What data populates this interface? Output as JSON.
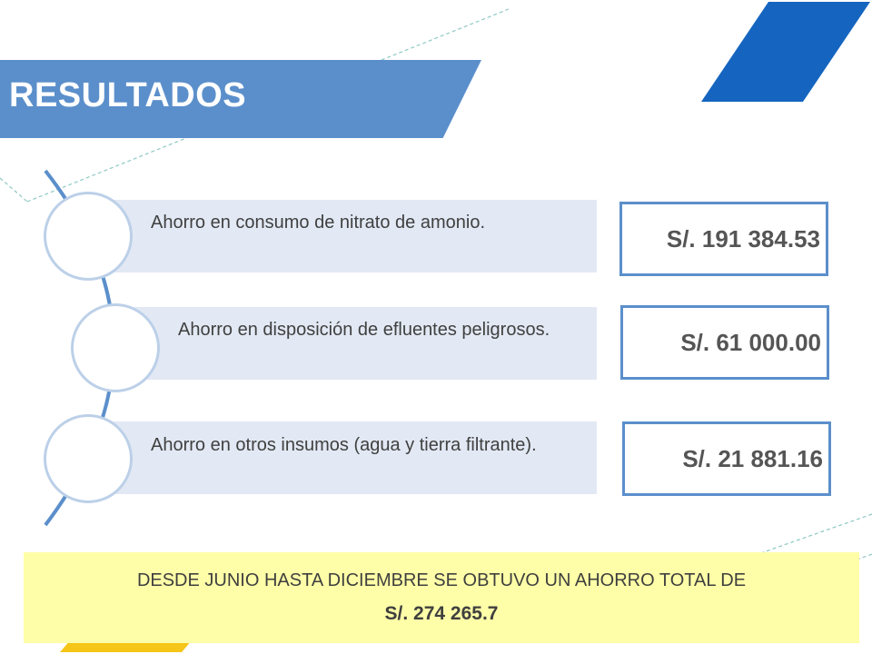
{
  "header": {
    "title": "RESULTADOS"
  },
  "savings": [
    {
      "label": "Ahorro en consumo de nitrato de amonio.",
      "amount": "S/. 191 384.53"
    },
    {
      "label": "Ahorro en disposición de efluentes peligrosos.",
      "amount": "S/. 61 000.00"
    },
    {
      "label": "Ahorro en otros insumos (agua y tierra filtrante).",
      "amount": "S/. 21 881.16"
    }
  ],
  "summary": {
    "line1": "DESDE JUNIO HASTA DICIEMBRE SE OBTUVO UN AHORRO TOTAL DE",
    "total": "S/. 274 265.7"
  },
  "colors": {
    "banner": "#5b8fcb",
    "accent_dark": "#1565c0",
    "row_band": "#e2e9f4",
    "summary_bg": "#fefea8",
    "accent_yellow": "#f5c518"
  }
}
